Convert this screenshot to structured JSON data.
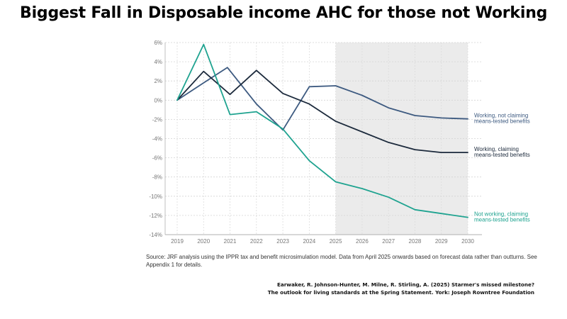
{
  "title": "Biggest Fall in Disposable income AHC for those not Working",
  "source_note": "Source: JRF analysis using the IPPR tax and benefit microsimulation model. Data from April 2025 onwards based on forecast data rather than outturns. See Appendix 1 for details.",
  "citation": {
    "line1": "Earwaker, R. Johnson-Hunter, M. Milne, R. Stirling, A. (2025) Starmer's missed milestone?",
    "line2": "The outlook for living standards at the Spring Statement. York: Joseph Rowntree Foundation"
  },
  "chart_data": {
    "type": "line",
    "x": [
      2019,
      2020,
      2021,
      2022,
      2023,
      2024,
      2025,
      2026,
      2027,
      2028,
      2029,
      2030
    ],
    "ylim": [
      -14,
      6
    ],
    "yticks": [
      6,
      4,
      2,
      0,
      -2,
      -4,
      -6,
      -8,
      -10,
      -12,
      -14
    ],
    "ytick_labels": [
      "6%",
      "4%",
      "2%",
      "0%",
      "-2%",
      "-4%",
      "-6%",
      "-8%",
      "-10%",
      "-12%",
      "-14%"
    ],
    "forecast_shading": [
      2025,
      2030
    ],
    "grid": true,
    "series": [
      {
        "name": "Working, not claiming means-tested benefits",
        "label_lines": [
          "Working, not claiming",
          "means-tested benefits"
        ],
        "color": "#3d5a80",
        "points": [
          [
            2019,
            0
          ],
          [
            2020,
            1.8
          ],
          [
            2020.9,
            3.4
          ],
          [
            2022,
            -0.4
          ],
          [
            2023,
            -3.1
          ],
          [
            2024,
            1.4
          ],
          [
            2025,
            1.5
          ],
          [
            2026,
            0.5
          ],
          [
            2027,
            -0.8
          ],
          [
            2028,
            -1.6
          ],
          [
            2029,
            -1.85
          ],
          [
            2030,
            -1.95
          ]
        ]
      },
      {
        "name": "Working, claiming means-tested benefits",
        "label_lines": [
          "Working, claiming",
          "means-tested benefits"
        ],
        "color": "#1c2a3c",
        "points": [
          [
            2019,
            0
          ],
          [
            2020,
            3.0
          ],
          [
            2021,
            0.6
          ],
          [
            2022,
            3.1
          ],
          [
            2023,
            0.7
          ],
          [
            2024,
            -0.4
          ],
          [
            2025,
            -2.2
          ],
          [
            2026,
            -3.3
          ],
          [
            2027,
            -4.4
          ],
          [
            2028,
            -5.15
          ],
          [
            2029,
            -5.45
          ],
          [
            2030,
            -5.45
          ]
        ]
      },
      {
        "name": "Not working, claiming means-tested benefits",
        "label_lines": [
          "Not working, claiming",
          "means-tested benefits"
        ],
        "color": "#1fa390",
        "points": [
          [
            2019,
            0
          ],
          [
            2020,
            5.8
          ],
          [
            2021,
            -1.5
          ],
          [
            2022,
            -1.2
          ],
          [
            2023,
            -3.0
          ],
          [
            2024,
            -6.3
          ],
          [
            2025,
            -8.5
          ],
          [
            2026,
            -9.2
          ],
          [
            2027,
            -10.1
          ],
          [
            2028,
            -11.4
          ],
          [
            2029,
            -11.8
          ],
          [
            2030,
            -12.2
          ]
        ]
      }
    ]
  }
}
